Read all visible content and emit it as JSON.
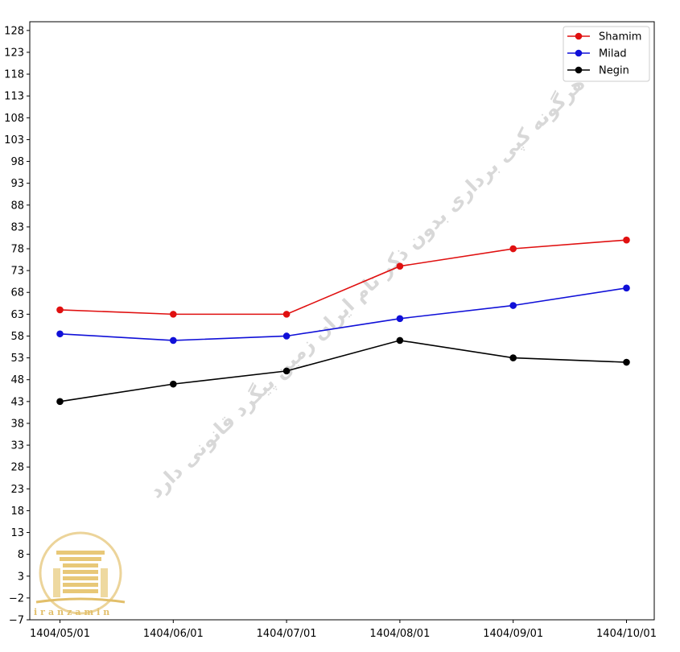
{
  "chart_data": {
    "type": "line",
    "title": "",
    "xlabel": "",
    "ylabel": "",
    "categories": [
      "1404/05/01",
      "1404/06/01",
      "1404/07/01",
      "1404/08/01",
      "1404/09/01",
      "1404/10/01"
    ],
    "series": [
      {
        "name": "Shamim",
        "color": "#e01010",
        "values": [
          64,
          63,
          63,
          74,
          78,
          80
        ]
      },
      {
        "name": "Milad",
        "color": "#1010d8",
        "values": [
          58.5,
          57,
          58,
          62,
          65,
          69
        ]
      },
      {
        "name": "Negin",
        "color": "#000000",
        "values": [
          43,
          47,
          50,
          57,
          53,
          52
        ]
      }
    ],
    "ylim": [
      -7,
      130
    ],
    "yticks": [
      -7,
      -2,
      3,
      8,
      13,
      18,
      23,
      28,
      33,
      38,
      43,
      48,
      53,
      58,
      63,
      68,
      73,
      78,
      83,
      88,
      93,
      98,
      103,
      108,
      113,
      118,
      123,
      128
    ],
    "grid": false,
    "legend_position": "top-right",
    "marker": "circle"
  },
  "watermark": {
    "text": "هرگونه کپی برداری بدون ذکر نام ایران زمین پیگرد قانونی دارد",
    "logo_text": "iranzamin",
    "logo_color": "#e2bf6a"
  }
}
